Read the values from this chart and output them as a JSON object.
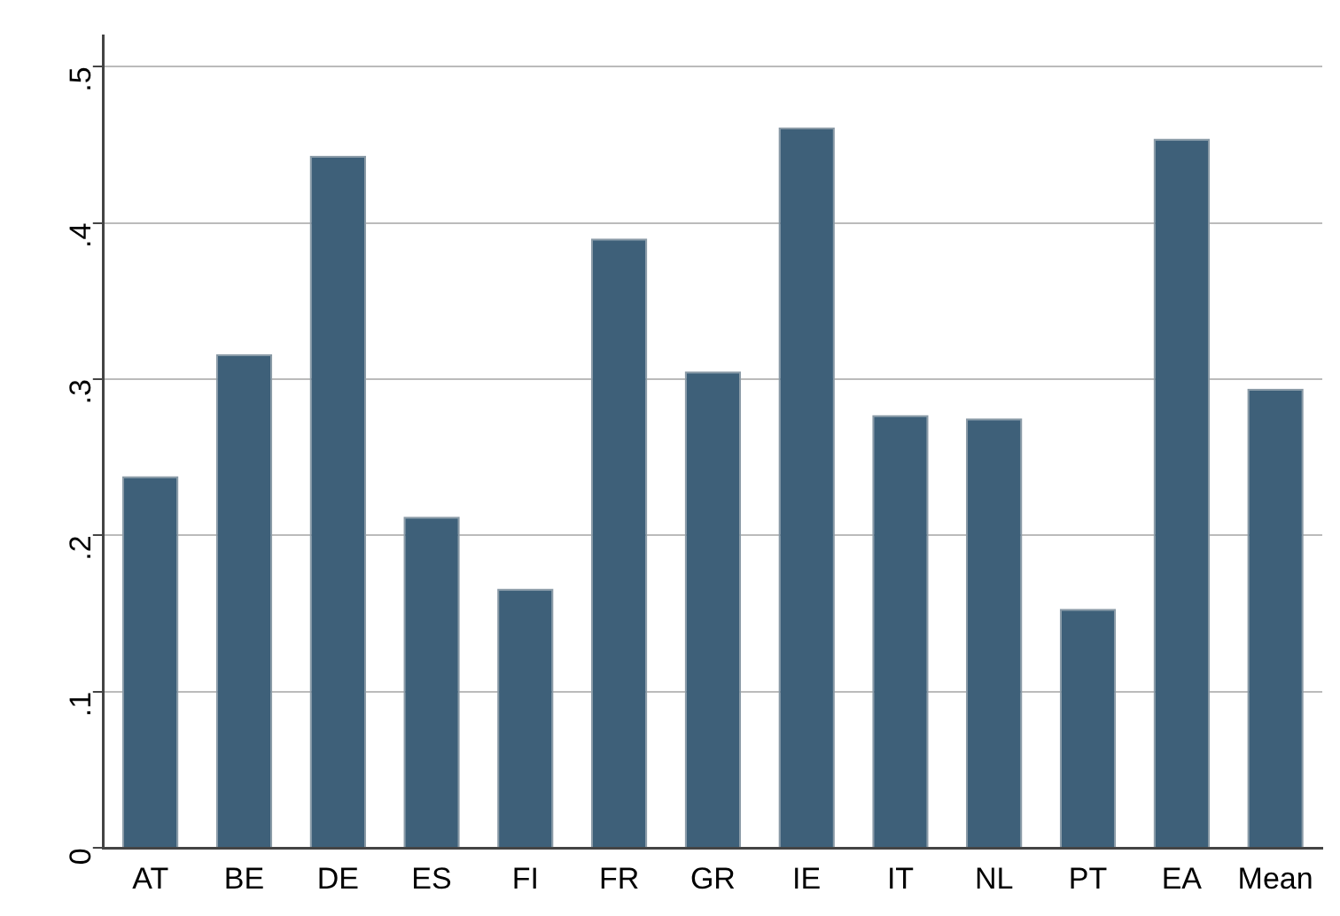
{
  "chart_data": {
    "type": "bar",
    "categories": [
      "AT",
      "BE",
      "DE",
      "ES",
      "FI",
      "FR",
      "GR",
      "IE",
      "IT",
      "NL",
      "PT",
      "EA",
      "Mean"
    ],
    "values": [
      0.238,
      0.316,
      0.443,
      0.212,
      0.166,
      0.39,
      0.305,
      0.461,
      0.277,
      0.275,
      0.153,
      0.454,
      0.294
    ],
    "color": "#3e6079",
    "ylim": [
      0,
      0.52
    ],
    "yticks": [
      {
        "value": 0,
        "label": "0"
      },
      {
        "value": 0.1,
        "label": ".1"
      },
      {
        "value": 0.2,
        "label": ".2"
      },
      {
        "value": 0.3,
        "label": ".3"
      },
      {
        "value": 0.4,
        "label": ".4"
      },
      {
        "value": 0.5,
        "label": ".5"
      }
    ],
    "grid": "y"
  }
}
